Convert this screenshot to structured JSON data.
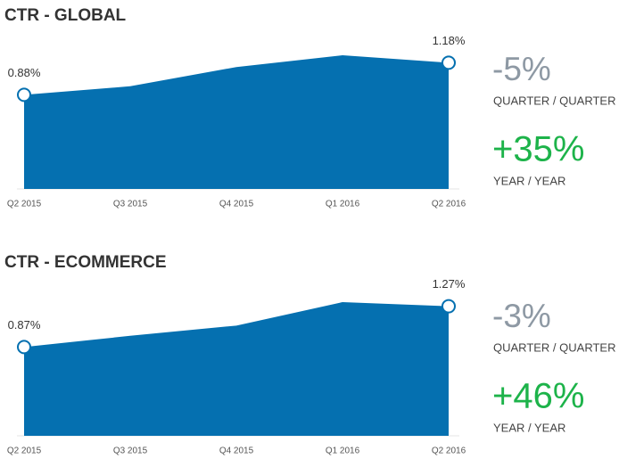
{
  "chart_data": [
    {
      "type": "area",
      "title": "CTR - GLOBAL",
      "categories": [
        "Q2 2015",
        "Q3 2015",
        "Q4 2015",
        "Q1 2016",
        "Q2 2016"
      ],
      "values": [
        0.88,
        0.96,
        1.14,
        1.25,
        1.18
      ],
      "value_labels": [
        "0.88%",
        null,
        null,
        null,
        "1.18%"
      ],
      "color": "#0570b0",
      "stats": [
        {
          "value": "-5%",
          "label": "QUARTER / QUARTER",
          "color": "#8e99a4"
        },
        {
          "value": "+35%",
          "label": "YEAR / YEAR",
          "color": "#1db34a"
        }
      ]
    },
    {
      "type": "area",
      "title": "CTR - ECOMMERCE",
      "categories": [
        "Q2 2015",
        "Q3 2015",
        "Q4 2015",
        "Q1 2016",
        "Q2 2016"
      ],
      "values": [
        0.87,
        0.98,
        1.08,
        1.31,
        1.27
      ],
      "value_labels": [
        "0.87%",
        null,
        null,
        null,
        "1.27%"
      ],
      "color": "#0570b0",
      "stats": [
        {
          "value": "-3%",
          "label": "QUARTER / QUARTER",
          "color": "#8e99a4"
        },
        {
          "value": "+46%",
          "label": "YEAR / YEAR",
          "color": "#1db34a"
        }
      ]
    }
  ]
}
